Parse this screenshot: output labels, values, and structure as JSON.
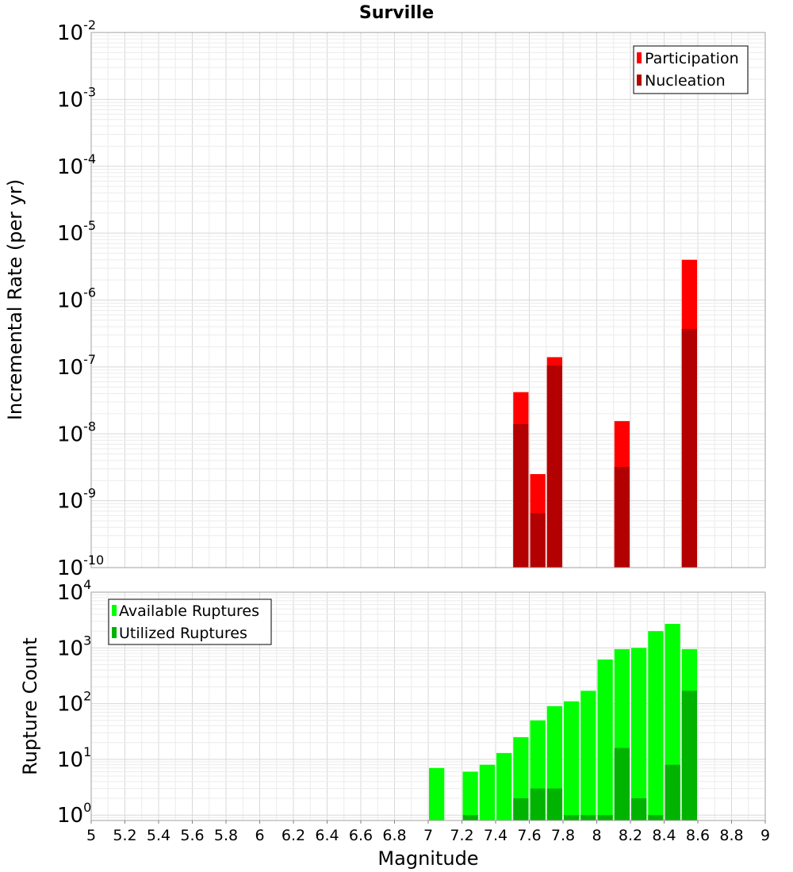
{
  "chart_data": [
    {
      "type": "bar",
      "title": "Surville",
      "xlabel": "",
      "ylabel": "Incremental Rate (per yr)",
      "yscale": "log",
      "xlim": [
        5,
        9
      ],
      "ylim": [
        1e-10,
        0.01
      ],
      "grid": true,
      "legend_position": "top-right",
      "bar_width": 0.1,
      "ytick_exponents": [
        "-10",
        "-9",
        "-8",
        "-7",
        "-6",
        "-5",
        "-4",
        "-3",
        "-2"
      ],
      "series": [
        {
          "name": "Participation",
          "color": "#ff0000",
          "x": [
            7.55,
            7.65,
            7.75,
            8.15,
            8.55
          ],
          "values": [
            4.2e-08,
            2.5e-09,
            1.4e-07,
            1.55e-08,
            4e-06
          ]
        },
        {
          "name": "Nucleation",
          "color": "#b30000",
          "x": [
            7.55,
            7.65,
            7.75,
            8.15,
            8.55
          ],
          "values": [
            1.4e-08,
            6.5e-10,
            1.05e-07,
            3.2e-09,
            3.7e-07
          ]
        }
      ]
    },
    {
      "type": "bar",
      "title": "",
      "xlabel": "Magnitude",
      "ylabel": "Rupture Count",
      "yscale": "log",
      "xlim": [
        5,
        9
      ],
      "ylim": [
        0.8,
        10000
      ],
      "grid": true,
      "legend_position": "top-left",
      "bar_width": 0.1,
      "ytick_exponents": [
        "0",
        "1",
        "2",
        "3",
        "4"
      ],
      "xticks": [
        "5",
        "5.2",
        "5.4",
        "5.6",
        "5.8",
        "6",
        "6.2",
        "6.4",
        "6.6",
        "6.8",
        "7",
        "7.2",
        "7.4",
        "7.6",
        "7.8",
        "8",
        "8.2",
        "8.4",
        "8.6",
        "8.8",
        "9"
      ],
      "series": [
        {
          "name": "Available Ruptures",
          "color": "#00ff00",
          "x": [
            7.05,
            7.25,
            7.35,
            7.45,
            7.55,
            7.65,
            7.75,
            7.85,
            7.95,
            8.05,
            8.15,
            8.25,
            8.35,
            8.45,
            8.55
          ],
          "values": [
            7,
            6,
            8,
            13,
            25,
            50,
            90,
            110,
            170,
            620,
            950,
            1000,
            2000,
            2700,
            950
          ]
        },
        {
          "name": "Utilized Ruptures",
          "color": "#00b300",
          "x": [
            7.25,
            7.55,
            7.65,
            7.75,
            7.85,
            7.95,
            8.05,
            8.15,
            8.25,
            8.35,
            8.45,
            8.55
          ],
          "values": [
            1,
            2,
            3,
            3,
            1,
            1,
            1,
            16,
            2,
            1,
            8,
            170
          ]
        }
      ]
    }
  ]
}
